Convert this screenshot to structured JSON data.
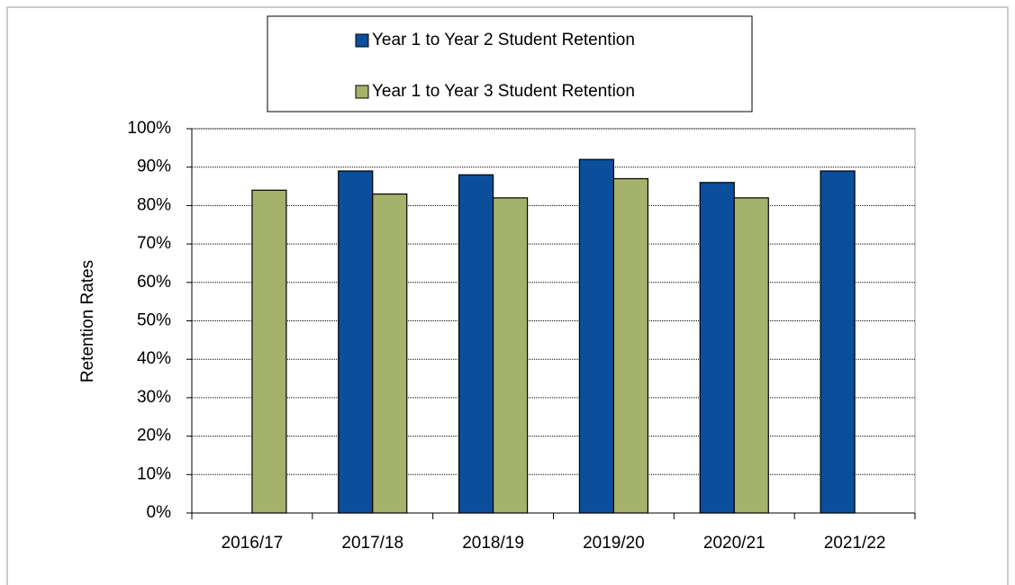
{
  "chart_data": {
    "type": "bar",
    "y_label": "Retention Rates",
    "categories": [
      "2016/17",
      "2017/18",
      "2018/19",
      "2019/20",
      "2020/21",
      "2021/22"
    ],
    "series": [
      {
        "name": "Year 1 to Year 2 Student Retention",
        "color": "#0b4f9c",
        "values": [
          null,
          89,
          88,
          92,
          86,
          89
        ]
      },
      {
        "name": "Year 1 to Year 3 Student Retention",
        "color": "#a5b26b",
        "values": [
          84,
          83,
          82,
          87,
          82,
          null
        ]
      }
    ],
    "ylim": [
      0,
      100
    ],
    "yticks": [
      {
        "value": 0,
        "label": "0%"
      },
      {
        "value": 10,
        "label": "10%"
      },
      {
        "value": 20,
        "label": "20%"
      },
      {
        "value": 30,
        "label": "30%"
      },
      {
        "value": 40,
        "label": "40%"
      },
      {
        "value": 50,
        "label": "50%"
      },
      {
        "value": 60,
        "label": "60%"
      },
      {
        "value": 70,
        "label": "70%"
      },
      {
        "value": 80,
        "label": "80%"
      },
      {
        "value": 90,
        "label": "90%"
      },
      {
        "value": 100,
        "label": "100%"
      }
    ],
    "grid": true
  }
}
